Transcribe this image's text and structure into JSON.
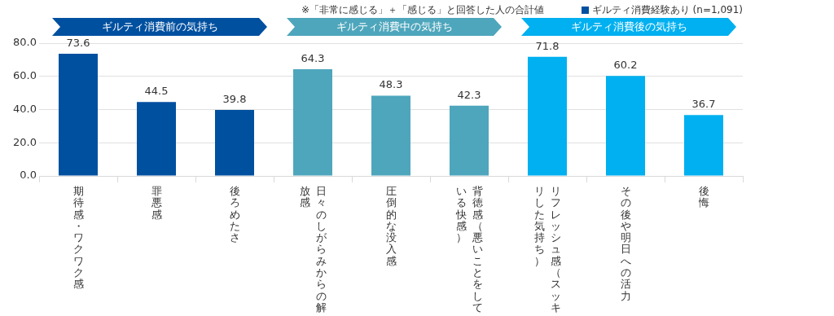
{
  "chart_data": {
    "type": "bar",
    "categories": [
      "期待感・ワクワク感",
      "罪悪感",
      "後ろめたさ",
      "日々のしがらみからの解放感",
      "圧倒的な没入感",
      "背徳感（悪いことをしている快感）",
      "リフレッシュ感（スッキリした気持ち）",
      "その後や明日への活力",
      "後悔"
    ],
    "series": [
      {
        "name": "ギルティ消費経験あり (n=1,091)",
        "color": "#0050a0",
        "colors": [
          "#0050a0",
          "#0050a0",
          "#0050a0",
          "#4ea6bc",
          "#4ea6bc",
          "#4ea6bc",
          "#00b0f0",
          "#00b0f0",
          "#00b0f0"
        ],
        "values": [
          73.6,
          44.5,
          39.8,
          64.3,
          48.3,
          42.3,
          71.8,
          60.2,
          36.7
        ]
      }
    ],
    "ylim": [
      0,
      80
    ],
    "yticks": [
      {
        "value": 0,
        "label": "0.0"
      },
      {
        "value": 20,
        "label": "20.0"
      },
      {
        "value": 40,
        "label": "40.0"
      },
      {
        "value": 60,
        "label": "60.0"
      },
      {
        "value": 80,
        "label": "80.0"
      }
    ],
    "grid": "y",
    "legend": "top right",
    "data_labels": true,
    "annotations": [
      "※「非常に感じる」＋「感じる」と回答した人の合計値",
      "ギルティ消費前の気持ち",
      "ギルティ消費中の気持ち",
      "ギルティ消費後の気持ち"
    ]
  }
}
